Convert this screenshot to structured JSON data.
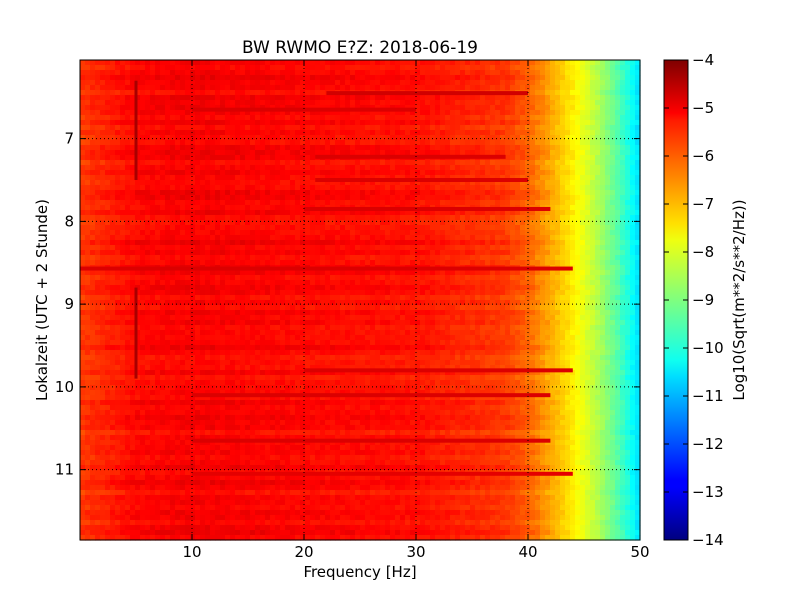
{
  "chart_data": {
    "type": "heatmap",
    "title": "BW RWMO E?Z: 2018-06-19",
    "xlabel": "Frequency [Hz]",
    "ylabel": "Lokalzeit (UTC + 2 Stunde)",
    "xlim": [
      0,
      50
    ],
    "ylim": [
      6.05,
      11.85
    ],
    "y_inverted": true,
    "x_ticks": [
      10,
      20,
      30,
      40,
      50
    ],
    "y_ticks": [
      7,
      8,
      9,
      10,
      11
    ],
    "grid": true,
    "colormap": "jet",
    "colorbar": {
      "label": "Log10(Sqrt(m**2/s**2/Hz))",
      "range": [
        -14,
        -4
      ],
      "ticks": [
        -4,
        -5,
        -6,
        -7,
        -8,
        -9,
        -10,
        -11,
        -12,
        -13,
        -14
      ]
    },
    "frequency_profile": {
      "frequency_hz": [
        0,
        5,
        10,
        20,
        30,
        38,
        40,
        42,
        44,
        46,
        48,
        50
      ],
      "log10_amplitude": [
        -5.8,
        -5.3,
        -5.2,
        -5.3,
        -5.4,
        -5.8,
        -6.2,
        -6.9,
        -7.6,
        -8.4,
        -9.4,
        -10.6
      ]
    },
    "horizontal_bands": [
      {
        "time": 6.45,
        "from_hz": 22,
        "to_hz": 40,
        "log10_amplitude": -4.8
      },
      {
        "time": 6.65,
        "from_hz": 10,
        "to_hz": 30,
        "log10_amplitude": -4.9
      },
      {
        "time": 7.22,
        "from_hz": 21,
        "to_hz": 38,
        "log10_amplitude": -4.9
      },
      {
        "time": 7.5,
        "from_hz": 21,
        "to_hz": 40,
        "log10_amplitude": -4.9
      },
      {
        "time": 7.85,
        "from_hz": 20,
        "to_hz": 42,
        "log10_amplitude": -4.9
      },
      {
        "time": 8.57,
        "from_hz": 0,
        "to_hz": 44,
        "log10_amplitude": -4.9
      },
      {
        "time": 9.8,
        "from_hz": 20,
        "to_hz": 44,
        "log10_amplitude": -4.9
      },
      {
        "time": 10.1,
        "from_hz": 10,
        "to_hz": 42,
        "log10_amplitude": -4.9
      },
      {
        "time": 10.65,
        "from_hz": 10,
        "to_hz": 42,
        "log10_amplitude": -4.9
      },
      {
        "time": 11.05,
        "from_hz": 10,
        "to_hz": 44,
        "log10_amplitude": -5.0
      }
    ],
    "vertical_lines": [
      {
        "frequency_hz": 5.0,
        "from_time": 6.3,
        "to_time": 7.5,
        "log10_amplitude": -4.4
      },
      {
        "frequency_hz": 5.0,
        "from_time": 8.8,
        "to_time": 9.9,
        "log10_amplitude": -4.4
      }
    ]
  }
}
